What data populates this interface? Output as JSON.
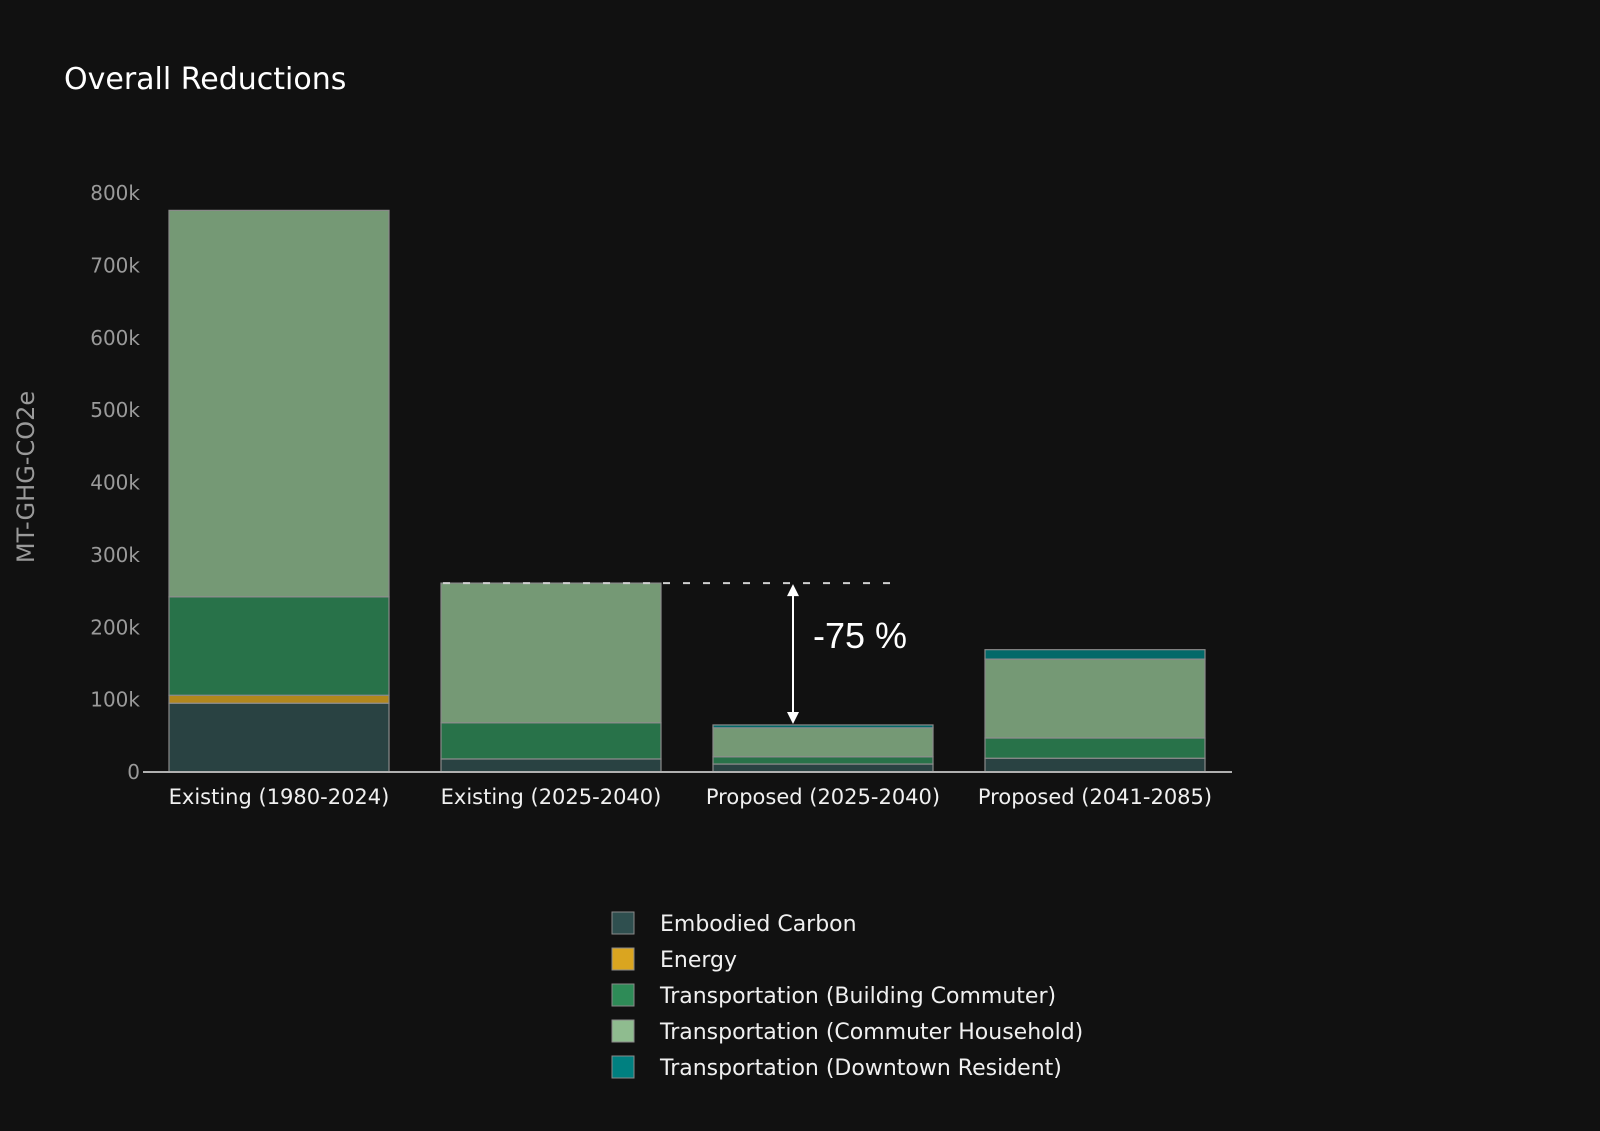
{
  "chart_data": {
    "type": "bar",
    "stacked": true,
    "title": "Overall Reductions",
    "xlabel": "",
    "ylabel": "MT-GHG-CO2e",
    "ylim": [
      0,
      800000
    ],
    "yticks": [
      0,
      100000,
      200000,
      300000,
      400000,
      500000,
      600000,
      700000,
      800000
    ],
    "ytick_labels": [
      "0",
      "100k",
      "200k",
      "300k",
      "400k",
      "500k",
      "600k",
      "700k",
      "800k"
    ],
    "grid": false,
    "categories": [
      "Existing (1980-2024)",
      "Existing (2025-2040)",
      "Proposed (2025-2040)",
      "Proposed (2041-2085)"
    ],
    "series": [
      {
        "name": "Embodied Carbon",
        "color": "#2f4f4f",
        "values": [
          95000,
          18000,
          11000,
          19000
        ]
      },
      {
        "name": "Energy",
        "color": "#daa520",
        "values": [
          11000,
          0,
          0,
          0
        ]
      },
      {
        "name": "Transportation (Building Commuter)",
        "color": "#2e8b57",
        "values": [
          136000,
          50000,
          10000,
          28000
        ]
      },
      {
        "name": "Transportation (Commuter Household)",
        "color": "#8fbc8f",
        "values": [
          534000,
          193000,
          40000,
          109000
        ]
      },
      {
        "name": "Transportation (Downtown Resident)",
        "color": "#008080",
        "values": [
          0,
          0,
          4000,
          13000
        ]
      }
    ],
    "legend_position": "bottom-center",
    "annotation": {
      "text": "-75 %",
      "from_category": "Existing (2025-2040)",
      "to_category": "Proposed (2025-2040)"
    }
  }
}
